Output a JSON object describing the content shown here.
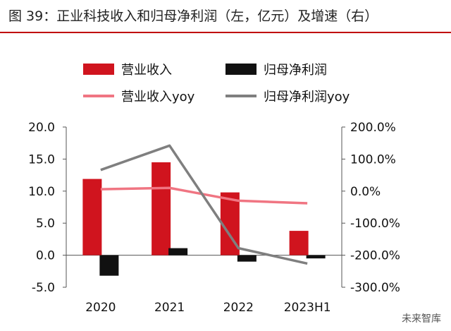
{
  "figure": {
    "title": "图 39：正业科技收入和归母净利润（左，亿元）及增速（右）",
    "watermark": "未来智库"
  },
  "chart_data": {
    "type": "bar+line",
    "title": "图 39：正业科技收入和归母净利润（左，亿元）及增速（右）",
    "categories": [
      "2020",
      "2021",
      "2022",
      "2023H1"
    ],
    "y_left": {
      "label": "亿元",
      "range": [
        -5.0,
        20.0
      ],
      "ticks": [
        "20.0",
        "15.0",
        "10.0",
        "5.0",
        "0.0",
        "-5.0"
      ]
    },
    "y_right": {
      "label": "增速",
      "range": [
        -300.0,
        200.0
      ],
      "ticks": [
        "200.0%",
        "100.0%",
        "0.0%",
        "-100.0%",
        "-200.0%",
        "-300.0%"
      ]
    },
    "series": [
      {
        "name": "营业收入",
        "kind": "bar",
        "axis": "left",
        "color": "#d0141e",
        "values": [
          11.9,
          14.5,
          9.8,
          3.8
        ]
      },
      {
        "name": "归母净利润",
        "kind": "bar",
        "axis": "left",
        "color": "#111111",
        "values": [
          -3.2,
          1.1,
          -1.0,
          -0.5
        ]
      },
      {
        "name": "营业收入yoy",
        "kind": "line",
        "axis": "right",
        "color": "#f07582",
        "values": [
          6.0,
          10.0,
          -30.0,
          -38.0
        ]
      },
      {
        "name": "归母净利润yoy",
        "kind": "line",
        "axis": "right",
        "color": "#7f7f7f",
        "values": [
          66.0,
          142.0,
          -178.0,
          -226.0
        ]
      }
    ],
    "legend_position": "top",
    "grid": false
  }
}
